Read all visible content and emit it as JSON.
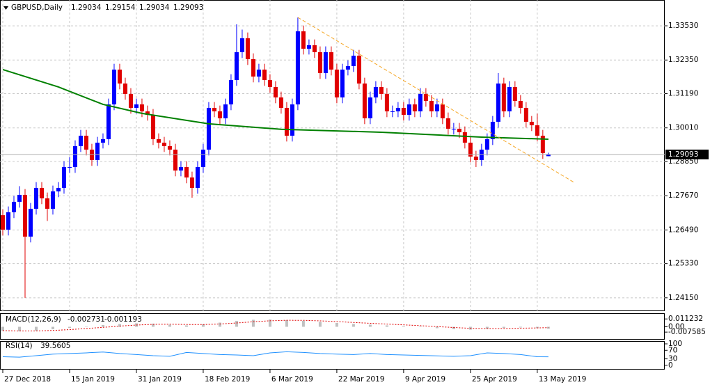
{
  "chart_data": [
    {
      "type": "candlestick",
      "title": "GBPUSD,Daily",
      "up_color": "#0000ff",
      "down_color": "#e00000",
      "grid": true,
      "ylim": [
        1.2369,
        1.3442
      ],
      "yticks": [
        {
          "value": 1.3353,
          "label": "1.33530"
        },
        {
          "value": 1.3235,
          "label": "1.32350"
        },
        {
          "value": 1.3119,
          "label": "1.31190"
        },
        {
          "value": 1.3001,
          "label": "1.30010"
        },
        {
          "value": 1.2885,
          "label": "1.28850"
        },
        {
          "value": 1.2767,
          "label": "1.27670"
        },
        {
          "value": 1.2649,
          "label": "1.26490"
        },
        {
          "value": 1.2533,
          "label": "1.25330"
        },
        {
          "value": 1.2415,
          "label": "1.24150"
        }
      ],
      "xlim": [
        -0.5,
        118.9
      ],
      "xticks": [
        {
          "value": 0,
          "label": "27 Dec 2018"
        },
        {
          "value": 12,
          "label": "15 Jan 2019"
        },
        {
          "value": 24,
          "label": "31 Jan 2019"
        },
        {
          "value": 36,
          "label": "18 Feb 2019"
        },
        {
          "value": 48,
          "label": "6 Mar 2019"
        },
        {
          "value": 60,
          "label": "22 Mar 2019"
        },
        {
          "value": 72,
          "label": "9 Apr 2019"
        },
        {
          "value": 84,
          "label": "25 Apr 2019"
        },
        {
          "value": 96,
          "label": "13 May 2019"
        }
      ],
      "candles": [
        [
          1.27,
          1.272,
          1.263,
          1.265
        ],
        [
          1.265,
          1.273,
          1.263,
          1.271
        ],
        [
          1.271,
          1.2766,
          1.269,
          1.2746
        ],
        [
          1.2746,
          1.28,
          1.2726,
          1.277
        ],
        [
          1.277,
          1.279,
          1.2415,
          1.2626
        ],
        [
          1.2626,
          1.2742,
          1.2606,
          1.2722
        ],
        [
          1.2722,
          1.2814,
          1.2702,
          1.2794
        ],
        [
          1.2794,
          1.2814,
          1.2738,
          1.2758
        ],
        [
          1.2758,
          1.2778,
          1.268,
          1.2722
        ],
        [
          1.2722,
          1.2802,
          1.2702,
          1.2782
        ],
        [
          1.2782,
          1.2814,
          1.2762,
          1.2794
        ],
        [
          1.2794,
          1.2886,
          1.2774,
          1.2866
        ],
        [
          1.2866,
          1.29,
          1.2846,
          1.2866
        ],
        [
          1.2866,
          1.2958,
          1.2846,
          1.2938
        ],
        [
          1.2938,
          1.2994,
          1.2918,
          1.2974
        ],
        [
          1.2974,
          1.2994,
          1.2906,
          1.2926
        ],
        [
          1.2926,
          1.2946,
          1.287,
          1.289
        ],
        [
          1.289,
          1.297,
          1.287,
          1.295
        ],
        [
          1.295,
          1.2982,
          1.293,
          1.2962
        ],
        [
          1.2962,
          1.3102,
          1.2942,
          1.3082
        ],
        [
          1.3082,
          1.3222,
          1.3062,
          1.3202
        ],
        [
          1.3202,
          1.3222,
          1.3134,
          1.3154
        ],
        [
          1.3154,
          1.3174,
          1.3098,
          1.3118
        ],
        [
          1.3118,
          1.3138,
          1.305,
          1.307
        ],
        [
          1.307,
          1.3102,
          1.305,
          1.3082
        ],
        [
          1.3082,
          1.3102,
          1.3038,
          1.3058
        ],
        [
          1.3058,
          1.3078,
          1.3026,
          1.3046
        ],
        [
          1.3046,
          1.3066,
          1.2942,
          1.2962
        ],
        [
          1.2962,
          1.2982,
          1.293,
          1.295
        ],
        [
          1.295,
          1.297,
          1.2918,
          1.2938
        ],
        [
          1.2938,
          1.2958,
          1.2906,
          1.2926
        ],
        [
          1.2926,
          1.2946,
          1.2834,
          1.2854
        ],
        [
          1.2854,
          1.2886,
          1.2834,
          1.2866
        ],
        [
          1.2866,
          1.2886,
          1.281,
          1.283
        ],
        [
          1.283,
          1.285,
          1.276,
          1.2794
        ],
        [
          1.2794,
          1.2886,
          1.2774,
          1.2866
        ],
        [
          1.2866,
          1.2946,
          1.2846,
          1.2926
        ],
        [
          1.2926,
          1.309,
          1.2906,
          1.307
        ],
        [
          1.307,
          1.309,
          1.3038,
          1.3058
        ],
        [
          1.3058,
          1.3078,
          1.3014,
          1.3034
        ],
        [
          1.3034,
          1.3102,
          1.3014,
          1.3082
        ],
        [
          1.3082,
          1.3186,
          1.3062,
          1.3166
        ],
        [
          1.3166,
          1.3358,
          1.3146,
          1.3262
        ],
        [
          1.3262,
          1.334,
          1.3242,
          1.331
        ],
        [
          1.331,
          1.333,
          1.3218,
          1.3238
        ],
        [
          1.3238,
          1.3258,
          1.3158,
          1.3178
        ],
        [
          1.3178,
          1.3222,
          1.3158,
          1.3202
        ],
        [
          1.3202,
          1.3222,
          1.3146,
          1.3166
        ],
        [
          1.3166,
          1.3186,
          1.3122,
          1.3142
        ],
        [
          1.3142,
          1.3162,
          1.3086,
          1.3106
        ],
        [
          1.3106,
          1.3126,
          1.305,
          1.307
        ],
        [
          1.307,
          1.309,
          1.2954,
          1.2974
        ],
        [
          1.2974,
          1.3102,
          1.2954,
          1.3082
        ],
        [
          1.3082,
          1.3382,
          1.3062,
          1.3334
        ],
        [
          1.3334,
          1.3354,
          1.3254,
          1.3274
        ],
        [
          1.3274,
          1.3306,
          1.3254,
          1.3286
        ],
        [
          1.3286,
          1.3306,
          1.3242,
          1.3262
        ],
        [
          1.3262,
          1.3282,
          1.317,
          1.319
        ],
        [
          1.319,
          1.3282,
          1.317,
          1.3262
        ],
        [
          1.3262,
          1.3282,
          1.3182,
          1.3202
        ],
        [
          1.3202,
          1.3222,
          1.3086,
          1.3106
        ],
        [
          1.3106,
          1.3222,
          1.3086,
          1.3202
        ],
        [
          1.3202,
          1.3234,
          1.3182,
          1.3214
        ],
        [
          1.3214,
          1.327,
          1.3194,
          1.325
        ],
        [
          1.325,
          1.327,
          1.3134,
          1.3154
        ],
        [
          1.3154,
          1.3174,
          1.3014,
          1.3034
        ],
        [
          1.3034,
          1.3126,
          1.3014,
          1.3106
        ],
        [
          1.3106,
          1.3162,
          1.3086,
          1.3142
        ],
        [
          1.3142,
          1.3162,
          1.3098,
          1.3118
        ],
        [
          1.3118,
          1.3138,
          1.3038,
          1.3058
        ],
        [
          1.3058,
          1.3078,
          1.3038,
          1.3058
        ],
        [
          1.3058,
          1.309,
          1.3038,
          1.307
        ],
        [
          1.307,
          1.309,
          1.3026,
          1.3046
        ],
        [
          1.3046,
          1.3102,
          1.3026,
          1.3082
        ],
        [
          1.3082,
          1.3102,
          1.3038,
          1.3058
        ],
        [
          1.3058,
          1.3138,
          1.3038,
          1.3118
        ],
        [
          1.3118,
          1.3138,
          1.3074,
          1.3094
        ],
        [
          1.3094,
          1.3114,
          1.3038,
          1.3058
        ],
        [
          1.3058,
          1.3102,
          1.3038,
          1.3082
        ],
        [
          1.3082,
          1.3102,
          1.3014,
          1.3034
        ],
        [
          1.3034,
          1.3054,
          1.2978,
          1.2998
        ],
        [
          1.2998,
          1.3018,
          1.2978,
          1.2998
        ],
        [
          1.2998,
          1.3018,
          1.2966,
          1.2986
        ],
        [
          1.2986,
          1.3006,
          1.293,
          1.295
        ],
        [
          1.295,
          1.297,
          1.2882,
          1.2902
        ],
        [
          1.2902,
          1.2922,
          1.2866,
          1.289
        ],
        [
          1.289,
          1.2946,
          1.287,
          1.2926
        ],
        [
          1.2926,
          1.2982,
          1.2906,
          1.2962
        ],
        [
          1.2962,
          1.3042,
          1.2942,
          1.3022
        ],
        [
          1.3022,
          1.319,
          1.3002,
          1.3154
        ],
        [
          1.3154,
          1.3174,
          1.3038,
          1.3058
        ],
        [
          1.3058,
          1.3162,
          1.3038,
          1.3142
        ],
        [
          1.3142,
          1.3162,
          1.3074,
          1.3094
        ],
        [
          1.3094,
          1.3114,
          1.305,
          1.307
        ],
        [
          1.307,
          1.309,
          1.3002,
          1.3022
        ],
        [
          1.3022,
          1.3042,
          1.299,
          1.301
        ],
        [
          1.301,
          1.305,
          1.2954,
          1.2974
        ],
        [
          1.2974,
          1.2994,
          1.2894,
          1.2914
        ],
        [
          1.29034,
          1.29154,
          1.29034,
          1.29093
        ]
      ],
      "overlays": [
        {
          "color": "#008000",
          "dash": false,
          "x": [
            0,
            10,
            18,
            25,
            37,
            50,
            68,
            86,
            98
          ],
          "values": [
            1.3202,
            1.3142,
            1.3082,
            1.3051,
            1.3015,
            1.2996,
            1.2986,
            1.2969,
            1.2962
          ]
        },
        {
          "color": "#f5a623",
          "dash": true,
          "x": [
            53,
            102.6
          ],
          "values": [
            1.3382,
            1.2813
          ]
        }
      ]
    },
    {
      "type": "macd",
      "title": "MACD(12,26,9)",
      "ylim": [
        -0.0184,
        0.0194
      ],
      "yticks": [
        0.011232,
        {
          "value": 0,
          "label": "0.00"
        },
        -0.007585
      ],
      "x": [
        0,
        3,
        6,
        9,
        12,
        15,
        18,
        21,
        24,
        27,
        30,
        33,
        36,
        39,
        42,
        45,
        48,
        51,
        54,
        57,
        60,
        63,
        66,
        69,
        72,
        75,
        78,
        81,
        84,
        87,
        90,
        93,
        96,
        98
      ],
      "series": [
        {
          "color": "#c0c0c0",
          "values": [
            -0.006,
            -0.0065,
            -0.0055,
            -0.0035,
            -0.0015,
            0.0005,
            0.0025,
            0.004,
            0.005,
            0.0045,
            0.003,
            0.002,
            0.0035,
            0.006,
            0.0085,
            0.01,
            0.0105,
            0.0095,
            0.0085,
            0.007,
            0.0055,
            0.004,
            0.003,
            0.002,
            0.001,
            -0.0005,
            -0.002,
            -0.0035,
            -0.004,
            -0.003,
            -0.0015,
            -0.001,
            -0.002,
            -0.002731
          ]
        },
        {
          "color": "#e00000",
          "values": [
            -0.0055,
            -0.006,
            -0.006,
            -0.0052,
            -0.004,
            -0.0025,
            -0.0008,
            0.001,
            0.0025,
            0.0035,
            0.0037,
            0.0033,
            0.0032,
            0.004,
            0.0055,
            0.0072,
            0.0086,
            0.0093,
            0.0092,
            0.0085,
            0.0074,
            0.0062,
            0.005,
            0.0039,
            0.0028,
            0.0016,
            0.0003,
            -0.001,
            -0.0022,
            -0.0027,
            -0.0025,
            -0.002,
            -0.0016,
            -0.001193
          ]
        }
      ]
    },
    {
      "type": "line",
      "title": "RSI(14)",
      "ylim": [
        -20,
        113
      ],
      "yticks": [
        100,
        70,
        30,
        0
      ],
      "color": "#1e90ff",
      "x": [
        0,
        3,
        6,
        9,
        12,
        15,
        18,
        21,
        24,
        27,
        30,
        33,
        36,
        39,
        42,
        45,
        48,
        51,
        54,
        57,
        60,
        63,
        66,
        69,
        72,
        75,
        78,
        81,
        84,
        87,
        90,
        93,
        96,
        98
      ],
      "values": [
        40,
        38,
        45,
        52,
        55,
        58,
        62,
        55,
        50,
        45,
        42,
        60,
        55,
        50,
        48,
        45,
        58,
        63,
        60,
        55,
        52,
        50,
        55,
        50,
        48,
        46,
        44,
        42,
        45,
        58,
        55,
        50,
        40,
        39.5605
      ]
    }
  ]
}
